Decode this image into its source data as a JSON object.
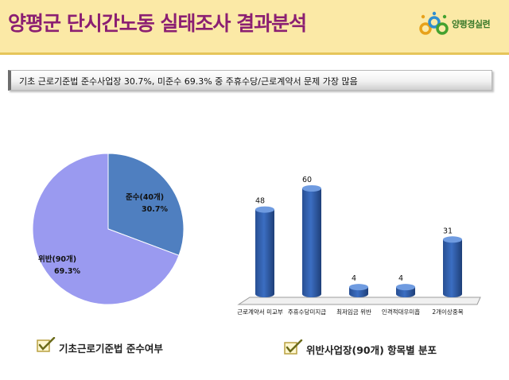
{
  "header": {
    "title": "양평군 단시간노동 실태조사 결과분석",
    "logo_text": "양평경실련"
  },
  "summary": "기초 근로기준법 준수사업장 30.7%, 미준수 69.3%  중 주휴수당/근로계약서 문제 가장 많음",
  "pie_caption": "기초근로기준법 준수여부",
  "bar_caption": "위반사업장(90개) 항목별 분포",
  "colors": {
    "pie_comply": "#4f7fc0",
    "pie_violate": "#9a9af0",
    "bar": "#3b6ec2",
    "header_bg": "#fbe9a6",
    "title": "#8b1f72"
  },
  "chart_data": [
    {
      "type": "pie",
      "categories": [
        "준수(40개)",
        "위반(90개)"
      ],
      "values": [
        30.7,
        69.3
      ],
      "value_labels": [
        "30.7%",
        "69.3%"
      ]
    },
    {
      "type": "bar",
      "categories": [
        "근로계약서 미교부",
        "주휴수당미지급",
        "최저임금 위반",
        "인격적대우미흡",
        "2개이상중복"
      ],
      "values": [
        48,
        60,
        4,
        4,
        31
      ]
    }
  ]
}
